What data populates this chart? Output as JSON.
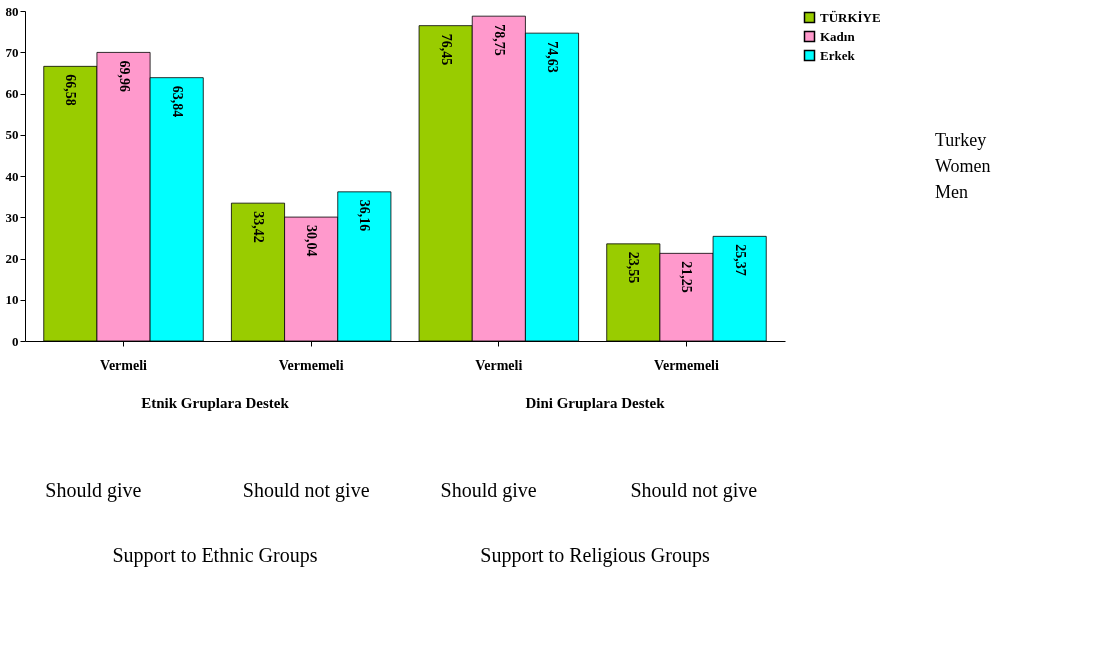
{
  "chart_data": {
    "type": "bar",
    "categories": [
      "Vermeli",
      "Vermemeli",
      "Vermeli",
      "Vermemeli"
    ],
    "series": [
      {
        "name": "TÜRKİYE",
        "color": "#99cc00",
        "values": [
          66.58,
          33.42,
          76.45,
          23.55
        ],
        "value_labels": [
          "66,58",
          "33,42",
          "76,45",
          "23,55"
        ]
      },
      {
        "name": "Kadın",
        "color": "#ff99cc",
        "values": [
          69.96,
          30.04,
          78.75,
          21.25
        ],
        "value_labels": [
          "69,96",
          "30,04",
          "78,75",
          "21,25"
        ]
      },
      {
        "name": "Erkek",
        "color": "#00ffff",
        "values": [
          63.84,
          36.16,
          74.63,
          25.37
        ],
        "value_labels": [
          "63,84",
          "36,16",
          "74,63",
          "25,37"
        ]
      }
    ],
    "ylim": [
      0,
      80
    ],
    "yticks": [
      0,
      10,
      20,
      30,
      40,
      50,
      60,
      70,
      80
    ],
    "grid": false,
    "legend": "top right",
    "annotations": [
      "Etnik Gruplara Destek",
      "Dini Gruplara Destek",
      "Should give",
      "Should not give",
      "Should give",
      "Should not give",
      "Support to Ethnic Groups",
      "Support to Religious Groups",
      "Turkey",
      "Women",
      "Men"
    ]
  }
}
